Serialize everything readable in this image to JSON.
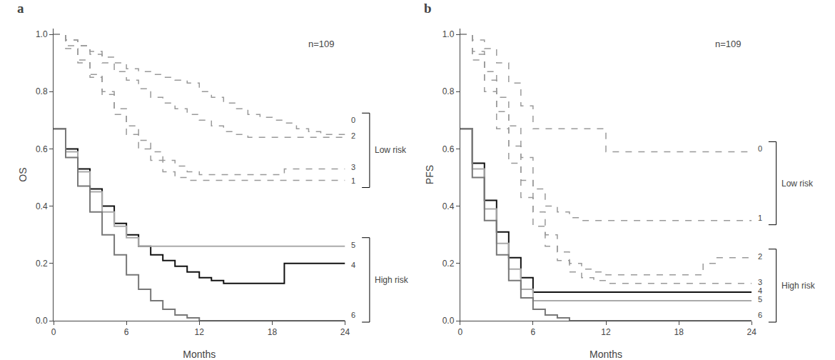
{
  "chart_data": [
    {
      "type": "step",
      "title": "a",
      "xlabel": "Months",
      "ylabel": "OS",
      "annotations": [
        {
          "text": "n=109"
        },
        {
          "text": "Low risk",
          "groups": [
            "0",
            "2",
            "3",
            "1"
          ]
        },
        {
          "text": "High risk",
          "groups": [
            "5",
            "4",
            "6"
          ]
        }
      ],
      "x": [
        0,
        1,
        2,
        3,
        4,
        5,
        6,
        7,
        8,
        9,
        10,
        11,
        12,
        13,
        14,
        15,
        16,
        17,
        18,
        19,
        20,
        21,
        22,
        23,
        24
      ],
      "series": [
        {
          "name": "0",
          "color": "#999999",
          "line_style": "dashed",
          "label_y": 0.7,
          "values": [
            1.0,
            0.98,
            0.96,
            0.94,
            0.92,
            0.9,
            0.88,
            0.87,
            0.86,
            0.85,
            0.84,
            0.83,
            0.8,
            0.78,
            0.76,
            0.74,
            0.72,
            0.71,
            0.7,
            0.69,
            0.67,
            0.66,
            0.65,
            0.65,
            0.65
          ]
        },
        {
          "name": "1",
          "color": "#999999",
          "line_style": "dashed",
          "label_y": 0.49,
          "values": [
            1.0,
            0.95,
            0.9,
            0.85,
            0.79,
            0.72,
            0.65,
            0.6,
            0.56,
            0.52,
            0.5,
            0.49,
            0.49,
            0.49,
            0.49,
            0.49,
            0.49,
            0.49,
            0.49,
            0.49,
            0.49,
            0.49,
            0.49,
            0.49,
            0.49
          ]
        },
        {
          "name": "2",
          "color": "#999999",
          "line_style": "dashed",
          "label_y": 0.645,
          "values": [
            1.0,
            0.98,
            0.96,
            0.93,
            0.9,
            0.87,
            0.84,
            0.81,
            0.78,
            0.76,
            0.74,
            0.72,
            0.7,
            0.68,
            0.66,
            0.65,
            0.64,
            0.64,
            0.64,
            0.64,
            0.64,
            0.64,
            0.64,
            0.64,
            0.64
          ]
        },
        {
          "name": "3",
          "color": "#999999",
          "line_style": "dashed",
          "label_y": 0.535,
          "values": [
            1.0,
            0.96,
            0.91,
            0.86,
            0.8,
            0.74,
            0.68,
            0.63,
            0.59,
            0.56,
            0.54,
            0.52,
            0.51,
            0.51,
            0.51,
            0.51,
            0.51,
            0.51,
            0.51,
            0.53,
            0.53,
            0.53,
            0.53,
            0.53,
            0.53
          ]
        },
        {
          "name": "4",
          "color": "#111111",
          "line_style": "solid",
          "label_y": 0.195,
          "values": [
            0.67,
            0.6,
            0.53,
            0.46,
            0.4,
            0.34,
            0.3,
            0.26,
            0.23,
            0.21,
            0.19,
            0.17,
            0.15,
            0.14,
            0.13,
            0.13,
            0.13,
            0.13,
            0.13,
            0.2,
            0.2,
            0.2,
            0.2,
            0.2,
            0.2
          ]
        },
        {
          "name": "5",
          "color": "#aaaaaa",
          "line_style": "solid",
          "label_y": 0.265,
          "values": [
            0.67,
            0.59,
            0.52,
            0.45,
            0.38,
            0.33,
            0.29,
            0.26,
            0.26,
            0.26,
            0.26,
            0.26,
            0.26,
            0.26,
            0.26,
            0.26,
            0.26,
            0.26,
            0.26,
            0.26,
            0.26,
            0.26,
            0.26,
            0.26,
            0.26
          ]
        },
        {
          "name": "6",
          "color": "#777777",
          "line_style": "solid",
          "label_y": 0.02,
          "values": [
            0.67,
            0.57,
            0.47,
            0.38,
            0.3,
            0.23,
            0.16,
            0.11,
            0.07,
            0.04,
            0.02,
            0.01,
            0.0,
            0.0,
            0.0,
            0.0,
            0.0,
            0.0,
            0.0,
            0.0,
            0.0,
            0.0,
            0.0,
            0.0,
            0.0
          ]
        }
      ],
      "xlim": [
        0,
        24
      ],
      "ylim": [
        0.0,
        1.02
      ],
      "xticks": [
        0,
        6,
        12,
        18,
        24
      ],
      "yticks": [
        {
          "value": 0.0,
          "label": "0.0"
        },
        {
          "value": 0.2,
          "label": "0.2"
        },
        {
          "value": 0.4,
          "label": "0.4"
        },
        {
          "value": 0.6,
          "label": "0.6"
        },
        {
          "value": 0.8,
          "label": "0.8"
        },
        {
          "value": 1.0,
          "label": "1.0"
        }
      ],
      "grid": false
    },
    {
      "type": "step",
      "title": "b",
      "xlabel": "Months",
      "ylabel": "PFS",
      "annotations": [
        {
          "text": "n=109"
        },
        {
          "text": "Low risk",
          "groups": [
            "0",
            "1"
          ]
        },
        {
          "text": "High risk",
          "groups": [
            "2",
            "3",
            "4",
            "5",
            "6"
          ]
        }
      ],
      "x": [
        0,
        1,
        2,
        3,
        4,
        5,
        6,
        7,
        8,
        9,
        10,
        11,
        12,
        13,
        14,
        15,
        16,
        17,
        18,
        19,
        20,
        21,
        22,
        23,
        24
      ],
      "series": [
        {
          "name": "0",
          "color": "#999999",
          "line_style": "dashed",
          "label_y": 0.6,
          "values": [
            1.0,
            0.98,
            0.95,
            0.9,
            0.83,
            0.75,
            0.67,
            0.67,
            0.67,
            0.67,
            0.67,
            0.67,
            0.59,
            0.59,
            0.59,
            0.59,
            0.59,
            0.59,
            0.59,
            0.59,
            0.59,
            0.59,
            0.59,
            0.59,
            0.59
          ]
        },
        {
          "name": "1",
          "color": "#999999",
          "line_style": "dashed",
          "label_y": 0.36,
          "values": [
            1.0,
            0.94,
            0.87,
            0.78,
            0.68,
            0.57,
            0.46,
            0.4,
            0.38,
            0.36,
            0.35,
            0.35,
            0.35,
            0.35,
            0.35,
            0.35,
            0.35,
            0.35,
            0.35,
            0.35,
            0.35,
            0.35,
            0.35,
            0.35,
            0.35
          ]
        },
        {
          "name": "2",
          "color": "#999999",
          "line_style": "dashed",
          "label_y": 0.225,
          "values": [
            1.0,
            0.93,
            0.84,
            0.73,
            0.61,
            0.49,
            0.38,
            0.3,
            0.24,
            0.2,
            0.18,
            0.17,
            0.16,
            0.16,
            0.16,
            0.16,
            0.16,
            0.16,
            0.16,
            0.16,
            0.2,
            0.22,
            0.22,
            0.22,
            0.22
          ]
        },
        {
          "name": "3",
          "color": "#999999",
          "line_style": "dashed",
          "label_y": 0.135,
          "values": [
            1.0,
            0.91,
            0.8,
            0.67,
            0.55,
            0.43,
            0.33,
            0.26,
            0.21,
            0.17,
            0.15,
            0.14,
            0.13,
            0.13,
            0.13,
            0.13,
            0.13,
            0.13,
            0.13,
            0.13,
            0.13,
            0.13,
            0.13,
            0.13,
            0.13
          ]
        },
        {
          "name": "4",
          "color": "#111111",
          "line_style": "solid",
          "label_y": 0.105,
          "values": [
            0.67,
            0.55,
            0.42,
            0.31,
            0.22,
            0.15,
            0.1,
            0.1,
            0.1,
            0.1,
            0.1,
            0.1,
            0.1,
            0.1,
            0.1,
            0.1,
            0.1,
            0.1,
            0.1,
            0.1,
            0.1,
            0.1,
            0.1,
            0.1,
            0.1
          ]
        },
        {
          "name": "5",
          "color": "#aaaaaa",
          "line_style": "solid",
          "label_y": 0.075,
          "values": [
            0.67,
            0.53,
            0.39,
            0.27,
            0.18,
            0.11,
            0.07,
            0.07,
            0.07,
            0.07,
            0.07,
            0.07,
            0.07,
            0.07,
            0.07,
            0.07,
            0.07,
            0.07,
            0.07,
            0.07,
            0.07,
            0.07,
            0.07,
            0.07,
            0.07
          ]
        },
        {
          "name": "6",
          "color": "#777777",
          "line_style": "solid",
          "label_y": 0.02,
          "values": [
            0.67,
            0.5,
            0.35,
            0.23,
            0.14,
            0.08,
            0.04,
            0.02,
            0.01,
            0.0,
            0.0,
            0.0,
            0.0,
            0.0,
            0.0,
            0.0,
            0.0,
            0.0,
            0.0,
            0.0,
            0.0,
            0.0,
            0.0,
            0.0,
            0.0
          ]
        }
      ],
      "xlim": [
        0,
        24
      ],
      "ylim": [
        0.0,
        1.02
      ],
      "xticks": [
        0,
        6,
        12,
        18,
        24
      ],
      "yticks": [
        {
          "value": 0.0,
          "label": "0.0"
        },
        {
          "value": 0.2,
          "label": "0.2"
        },
        {
          "value": 0.4,
          "label": "0.4"
        },
        {
          "value": 0.6,
          "label": "0.6"
        },
        {
          "value": 0.8,
          "label": "0.8"
        },
        {
          "value": 1.0,
          "label": "1.0"
        }
      ],
      "grid": false
    }
  ]
}
